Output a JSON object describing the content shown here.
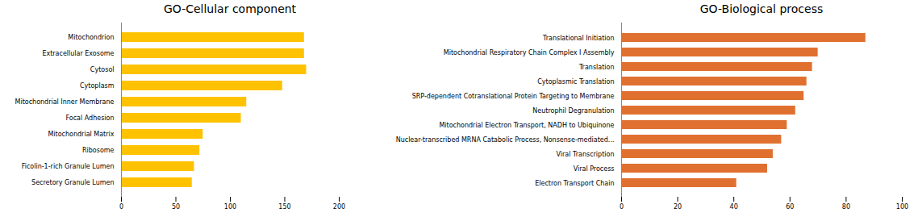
{
  "chart_data": [
    {
      "type": "bar",
      "orientation": "horizontal",
      "title": "GO-Cellular component",
      "categories": [
        "Secretory Granule Lumen",
        "Ficolin-1-rich Granule Lumen",
        "Ribosome",
        "Mitochondrial Matrix",
        "Focal Adhesion",
        "Mitochondrial Inner Membrane",
        "Cytoplasm",
        "Cytosol",
        "Extracellular Exosome",
        "Mitochondrion"
      ],
      "values": [
        65,
        67,
        72,
        75,
        110,
        115,
        148,
        170,
        168,
        168
      ],
      "color": "#FFC200",
      "xlim": [
        0,
        200
      ],
      "xticks": [
        0,
        50,
        100,
        150,
        200
      ],
      "grid": false
    },
    {
      "type": "bar",
      "orientation": "horizontal",
      "title": "GO-Biological process",
      "categories": [
        "Electron Transport Chain",
        "Viral Process",
        "Viral Transcription",
        "Nuclear-transcribed MRNA Catabolic Process, Nonsense-mediated...",
        "Mitochondrial Electron Transport, NADH to Ubiquinone",
        "Neutrophil Degranulation",
        "SRP-dependent Cotranslational Protein Targeting to Membrane",
        "Cytoplasmic Translation",
        "Translation",
        "Mitochondrial Respiratory Chain Complex I Assembly",
        "Translational Initiation"
      ],
      "values": [
        41,
        52,
        54,
        57,
        59,
        62,
        65,
        66,
        68,
        70,
        87
      ],
      "color": "#E07030",
      "xlim": [
        0,
        100
      ],
      "xticks": [
        0,
        20,
        40,
        60,
        80,
        100
      ],
      "grid": false
    }
  ]
}
